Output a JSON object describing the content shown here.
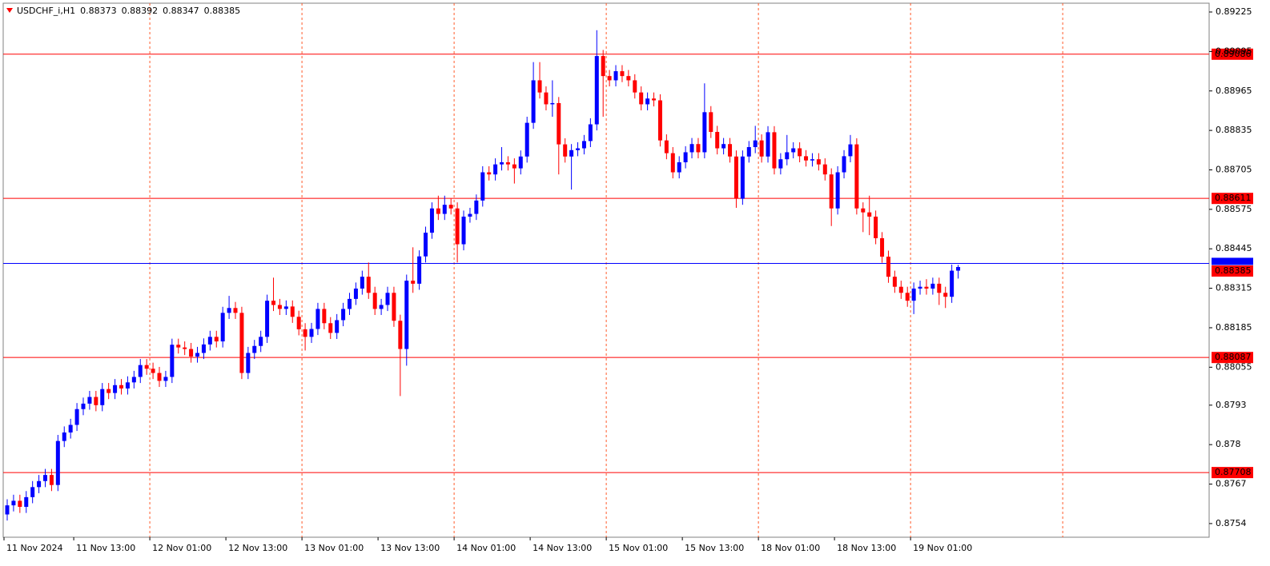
{
  "chart_data": {
    "type": "candlestick",
    "symbol": "USDCHF_i,H1",
    "categories": [
      "11 Nov 2024",
      null,
      null,
      null,
      null,
      null,
      null,
      null,
      null,
      null,
      null,
      "11 Nov 13:00",
      null,
      null,
      null,
      null,
      null,
      null,
      null,
      null,
      null,
      null,
      null,
      "12 Nov 01:00",
      null,
      null,
      null,
      null,
      null,
      null,
      null,
      null,
      null,
      null,
      null,
      "12 Nov 13:00",
      null,
      null,
      null,
      null,
      null,
      null,
      null,
      null,
      null,
      null,
      null,
      "13 Nov 01:00",
      null,
      null,
      null,
      null,
      null,
      null,
      null,
      null,
      null,
      null,
      null,
      "13 Nov 13:00",
      null,
      null,
      null,
      null,
      null,
      null,
      null,
      null,
      null,
      null,
      null,
      "14 Nov 01:00",
      null,
      null,
      null,
      null,
      null,
      null,
      null,
      null,
      null,
      null,
      null,
      "14 Nov 13:00",
      null,
      null,
      null,
      null,
      null,
      null,
      null,
      null,
      null,
      null,
      null,
      "15 Nov 01:00",
      null,
      null,
      null,
      null,
      null,
      null,
      null,
      null,
      null,
      null,
      null,
      "15 Nov 13:00",
      null,
      null,
      null,
      null,
      null,
      null,
      null,
      null,
      null,
      null,
      null,
      "18 Nov 01:00",
      null,
      null,
      null,
      null,
      null,
      null,
      null,
      null,
      null,
      null,
      null,
      "18 Nov 13:00",
      null,
      null,
      null,
      null,
      null,
      null,
      null,
      null,
      null,
      null,
      null,
      "19 Nov 01:00",
      null,
      null,
      null,
      null,
      null,
      null,
      null
    ],
    "open": [
      0.8757,
      0.876,
      0.87615,
      0.87595,
      0.87627,
      0.8766,
      0.8768,
      0.877,
      0.87667,
      0.87812,
      0.8784,
      0.87865,
      0.87917,
      0.87935,
      0.87957,
      0.8793,
      0.87983,
      0.8797,
      0.87996,
      0.87985,
      0.88005,
      0.88023,
      0.88062,
      0.8805,
      0.88036,
      0.8801,
      0.88023,
      0.88129,
      0.8812,
      0.88115,
      0.8809,
      0.88102,
      0.8813,
      0.88155,
      0.8814,
      0.88234,
      0.8825,
      0.88234,
      0.88036,
      0.88102,
      0.88125,
      0.88155,
      0.88274,
      0.8826,
      0.88247,
      0.88255,
      0.88221,
      0.8818,
      0.88155,
      0.88181,
      0.88247,
      0.882,
      0.88168,
      0.8821,
      0.88247,
      0.8828,
      0.88314,
      0.88353,
      0.883,
      0.88247,
      0.8826,
      0.883,
      0.88208,
      0.88115,
      0.8834,
      0.8833,
      0.8842,
      0.88498,
      0.88578,
      0.8856,
      0.8859,
      0.88578,
      0.8846,
      0.88551,
      0.8856,
      0.88604,
      0.88697,
      0.8869,
      0.88723,
      0.8873,
      0.88723,
      0.8871,
      0.88749,
      0.8886,
      0.89,
      0.8896,
      0.88921,
      0.88925,
      0.88789,
      0.88749,
      0.8877,
      0.88776,
      0.888,
      0.88855,
      0.8908,
      0.89014,
      0.89,
      0.8903,
      0.89014,
      0.89,
      0.8896,
      0.88921,
      0.8894,
      0.88934,
      0.88802,
      0.8876,
      0.88697,
      0.8873,
      0.88763,
      0.8879,
      0.88763,
      0.88895,
      0.8883,
      0.88776,
      0.8879,
      0.88749,
      0.8861,
      0.88749,
      0.8878,
      0.88802,
      0.88749,
      0.88829,
      0.8871,
      0.8874,
      0.88763,
      0.88776,
      0.8875,
      0.88736,
      0.8874,
      0.88723,
      0.8869,
      0.88578,
      0.88697,
      0.8875,
      0.88789,
      0.88578,
      0.88565,
      0.88551,
      0.8848,
      0.88419,
      0.88353,
      0.8832,
      0.883,
      0.88274,
      0.88314,
      0.8832,
      0.88314,
      0.8833,
      0.883,
      0.88287,
      0.88373
    ],
    "high": [
      0.8762,
      0.87635,
      0.87635,
      0.87647,
      0.8768,
      0.877,
      0.8772,
      0.8772,
      0.87832,
      0.8786,
      0.87885,
      0.87937,
      0.87955,
      0.87977,
      0.87977,
      0.88003,
      0.88003,
      0.88016,
      0.88016,
      0.88025,
      0.88043,
      0.88082,
      0.88082,
      0.8807,
      0.88056,
      0.88043,
      0.88149,
      0.88149,
      0.8814,
      0.88135,
      0.88122,
      0.8815,
      0.88175,
      0.88175,
      0.88254,
      0.8829,
      0.8827,
      0.88254,
      0.88122,
      0.88145,
      0.88175,
      0.88294,
      0.8835,
      0.8828,
      0.88275,
      0.88275,
      0.88241,
      0.882,
      0.88201,
      0.88267,
      0.88267,
      0.8822,
      0.8823,
      0.88267,
      0.883,
      0.88334,
      0.88373,
      0.884,
      0.8832,
      0.8828,
      0.8832,
      0.8832,
      0.88228,
      0.8836,
      0.8845,
      0.8844,
      0.88518,
      0.88598,
      0.8862,
      0.8862,
      0.8861,
      0.88598,
      0.88571,
      0.8858,
      0.88624,
      0.88717,
      0.88717,
      0.88743,
      0.8878,
      0.8875,
      0.88743,
      0.88769,
      0.8888,
      0.8906,
      0.8906,
      0.8898,
      0.89,
      0.88945,
      0.88809,
      0.8879,
      0.88796,
      0.8882,
      0.88875,
      0.89165,
      0.891,
      0.89034,
      0.8905,
      0.8905,
      0.89034,
      0.8902,
      0.8898,
      0.8896,
      0.8896,
      0.88954,
      0.88822,
      0.8878,
      0.8875,
      0.88783,
      0.8881,
      0.8881,
      0.8899,
      0.88915,
      0.8885,
      0.8881,
      0.8881,
      0.88769,
      0.88769,
      0.888,
      0.8885,
      0.88822,
      0.88849,
      0.88849,
      0.8876,
      0.8882,
      0.88796,
      0.88796,
      0.8877,
      0.8876,
      0.8876,
      0.88743,
      0.8871,
      0.88717,
      0.8877,
      0.8882,
      0.88809,
      0.88598,
      0.8862,
      0.88571,
      0.885,
      0.88439,
      0.88373,
      0.8834,
      0.8832,
      0.88334,
      0.8834,
      0.88345,
      0.8835,
      0.8835,
      0.8832,
      0.88393,
      0.88392
    ],
    "low": [
      0.8755,
      0.8758,
      0.87575,
      0.87575,
      0.87607,
      0.8764,
      0.8766,
      0.87647,
      0.87647,
      0.87792,
      0.8782,
      0.87845,
      0.87897,
      0.87915,
      0.8791,
      0.8791,
      0.8795,
      0.8795,
      0.87965,
      0.87965,
      0.87985,
      0.88003,
      0.8803,
      0.88016,
      0.8799,
      0.8799,
      0.88003,
      0.881,
      0.88095,
      0.8807,
      0.8807,
      0.88082,
      0.8811,
      0.8812,
      0.8812,
      0.88214,
      0.88214,
      0.88016,
      0.88016,
      0.88082,
      0.88105,
      0.88135,
      0.8824,
      0.88227,
      0.88227,
      0.88201,
      0.8816,
      0.8811,
      0.88135,
      0.88161,
      0.8818,
      0.88148,
      0.88148,
      0.8819,
      0.88227,
      0.8826,
      0.88294,
      0.8828,
      0.88227,
      0.88227,
      0.8824,
      0.88188,
      0.8796,
      0.8806,
      0.883,
      0.8831,
      0.884,
      0.88478,
      0.8854,
      0.8854,
      0.88558,
      0.884,
      0.8844,
      0.88531,
      0.8854,
      0.88584,
      0.8867,
      0.8867,
      0.88703,
      0.88703,
      0.8866,
      0.8869,
      0.88729,
      0.8884,
      0.8894,
      0.88901,
      0.8888,
      0.8869,
      0.88729,
      0.8864,
      0.8875,
      0.88756,
      0.8878,
      0.88835,
      0.8888,
      0.8898,
      0.8898,
      0.88994,
      0.8898,
      0.8894,
      0.88901,
      0.88901,
      0.88914,
      0.88782,
      0.8874,
      0.88677,
      0.88677,
      0.8871,
      0.88743,
      0.88743,
      0.88743,
      0.8881,
      0.88756,
      0.88756,
      0.88729,
      0.8858,
      0.8859,
      0.88729,
      0.8876,
      0.88729,
      0.88729,
      0.8869,
      0.8869,
      0.8872,
      0.88743,
      0.8873,
      0.88716,
      0.88716,
      0.88703,
      0.8867,
      0.8852,
      0.88558,
      0.88677,
      0.8873,
      0.88558,
      0.885,
      0.8849,
      0.8846,
      0.88399,
      0.88333,
      0.883,
      0.8828,
      0.88254,
      0.8823,
      0.88294,
      0.88294,
      0.88294,
      0.8826,
      0.8825,
      0.88267,
      0.88347
    ],
    "close": [
      0.876,
      0.87615,
      0.87595,
      0.87627,
      0.8766,
      0.8768,
      0.877,
      0.87667,
      0.87812,
      0.8784,
      0.87865,
      0.87917,
      0.87935,
      0.87957,
      0.8793,
      0.87983,
      0.8797,
      0.87996,
      0.87985,
      0.88005,
      0.88023,
      0.88062,
      0.8805,
      0.88036,
      0.8801,
      0.88023,
      0.88129,
      0.8812,
      0.88115,
      0.8809,
      0.88102,
      0.8813,
      0.88155,
      0.8814,
      0.88234,
      0.8825,
      0.88234,
      0.88036,
      0.88102,
      0.88125,
      0.88155,
      0.88274,
      0.8826,
      0.88247,
      0.88255,
      0.88221,
      0.8818,
      0.88155,
      0.88181,
      0.88247,
      0.882,
      0.88168,
      0.8821,
      0.88247,
      0.8828,
      0.88314,
      0.88353,
      0.883,
      0.88247,
      0.8826,
      0.883,
      0.88208,
      0.88115,
      0.8834,
      0.8833,
      0.8842,
      0.88498,
      0.88578,
      0.8856,
      0.8859,
      0.88578,
      0.8846,
      0.88551,
      0.8856,
      0.88604,
      0.88697,
      0.8869,
      0.88723,
      0.8873,
      0.88723,
      0.8871,
      0.88749,
      0.8886,
      0.89,
      0.8896,
      0.88921,
      0.88925,
      0.88789,
      0.88749,
      0.8877,
      0.88776,
      0.888,
      0.88855,
      0.8908,
      0.89014,
      0.89,
      0.8903,
      0.89014,
      0.89,
      0.8896,
      0.88921,
      0.8894,
      0.88934,
      0.88802,
      0.8876,
      0.88697,
      0.8873,
      0.88763,
      0.8879,
      0.88763,
      0.88895,
      0.8883,
      0.88776,
      0.8879,
      0.88749,
      0.8861,
      0.88749,
      0.8878,
      0.88802,
      0.88749,
      0.88829,
      0.8871,
      0.8874,
      0.88763,
      0.88776,
      0.8875,
      0.88736,
      0.8874,
      0.88723,
      0.8869,
      0.88578,
      0.88697,
      0.8875,
      0.88789,
      0.88578,
      0.88565,
      0.88551,
      0.8848,
      0.88419,
      0.88353,
      0.8832,
      0.883,
      0.88274,
      0.88314,
      0.8832,
      0.88314,
      0.8833,
      0.883,
      0.88287,
      0.88373,
      0.88385
    ],
    "up_color": "#0000ff",
    "down_color": "#ff0000",
    "ylim": [
      0.87495,
      0.89254
    ],
    "yticks": [
      0.89225,
      0.89095,
      0.88965,
      0.88835,
      0.88705,
      0.88575,
      0.88445,
      0.88315,
      0.88185,
      0.88055,
      0.8793,
      0.878,
      0.8767,
      0.8754
    ],
    "levels": [
      {
        "value": 0.89086,
        "color": "#ff0000"
      },
      {
        "value": 0.88611,
        "color": "#ff0000"
      },
      {
        "value": 0.88087,
        "color": "#ff0000"
      },
      {
        "value": 0.87708,
        "color": "#ff0000"
      }
    ],
    "bid_line": {
      "value": 0.88397,
      "color": "#0000ff"
    },
    "grid": true
  }
}
